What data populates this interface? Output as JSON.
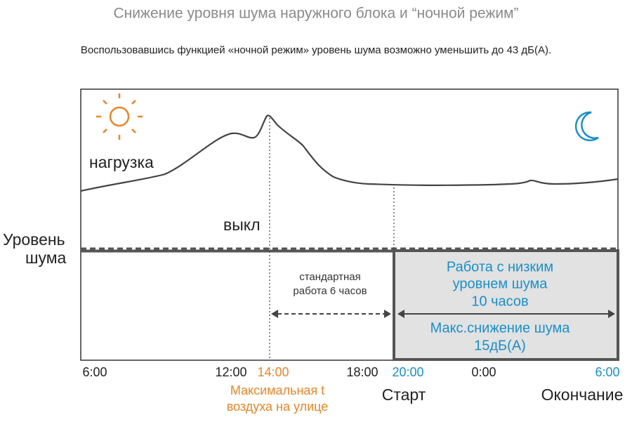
{
  "header": {
    "title": "Снижение уровня шума наружного блока и “ночной режим”",
    "subtitle": "Воспользовавшись функцией «ночной режим» уровень шума возможно уменьшить до 43 дБ(А)."
  },
  "diagram": {
    "load_label": "нагрузка",
    "off_label": "выкл",
    "y_label": [
      "Уровень",
      "шума"
    ],
    "standard_label": [
      "стандартная",
      "работа 6 часов"
    ],
    "low_noise_label": [
      "Работа с низким",
      "уровнем шума",
      "10 часов"
    ],
    "max_reduction_label": [
      "Макс.снижение шума",
      "15дБ(А)"
    ],
    "times": [
      "6:00",
      "12:00",
      "14:00",
      "18:00",
      "20:00",
      "0:00",
      "6:00"
    ],
    "max_temp_label": [
      "Максимальная t",
      "воздуха на улице"
    ],
    "start_label": "Старт",
    "end_label": "Окончание"
  }
}
